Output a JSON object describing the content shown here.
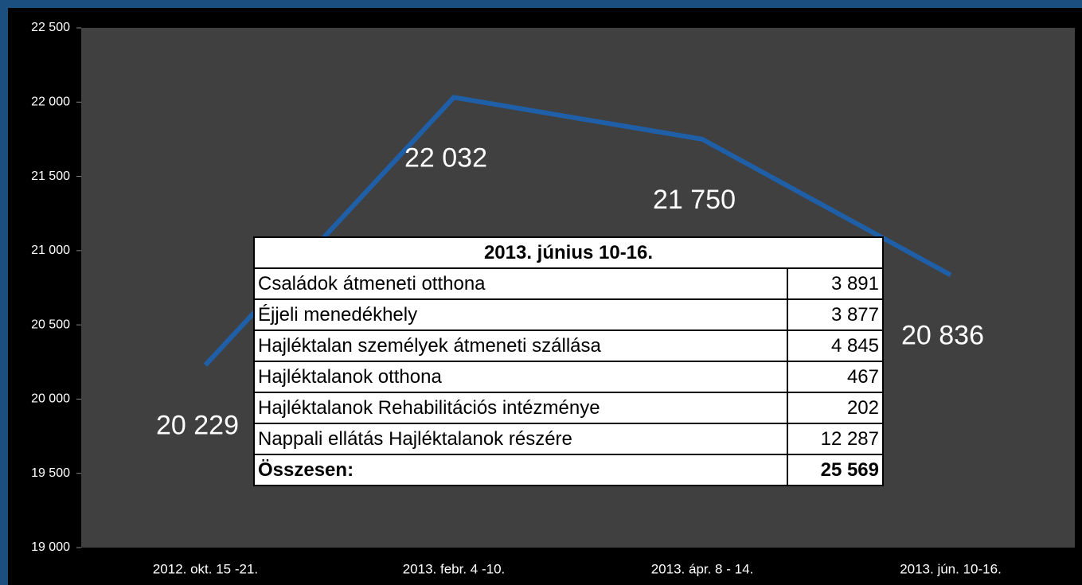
{
  "chart_data": {
    "type": "line",
    "categories": [
      "2012. okt. 15 -21.",
      "2013. febr. 4 -10.",
      "2013. ápr. 8 - 14.",
      "2013. jún. 10-16."
    ],
    "series": [
      {
        "color": "#1f5fa8",
        "values": [
          20229,
          22032,
          21750,
          20836
        ],
        "value_labels": [
          "20 229",
          "22 032",
          "21 750",
          "20 836"
        ]
      }
    ],
    "ylim": [
      19000,
      22500
    ],
    "yticks": [
      {
        "value": 19000,
        "label": "19 000"
      },
      {
        "value": 19500,
        "label": "19 500"
      },
      {
        "value": 20000,
        "label": "20 000"
      },
      {
        "value": 20500,
        "label": "20 500"
      },
      {
        "value": 21000,
        "label": "21 000"
      },
      {
        "value": 21500,
        "label": "21 500"
      },
      {
        "value": 22000,
        "label": "22 000"
      },
      {
        "value": 22500,
        "label": "22 500"
      }
    ]
  },
  "table": {
    "title": "2013. június 10-16.",
    "rows": [
      [
        "Családok átmeneti otthona",
        "3 891"
      ],
      [
        "Éjjeli menedékhely",
        "3 877"
      ],
      [
        "Hajléktalan személyek átmeneti szállása",
        "4 845"
      ],
      [
        "Hajléktalanok otthona",
        "467"
      ],
      [
        "Hajléktalanok Rehabilitációs intézménye",
        "202"
      ],
      [
        "Nappali ellátás Hajléktalanok részére",
        "12 287"
      ],
      [
        "Összesen:",
        "25 569"
      ]
    ]
  }
}
